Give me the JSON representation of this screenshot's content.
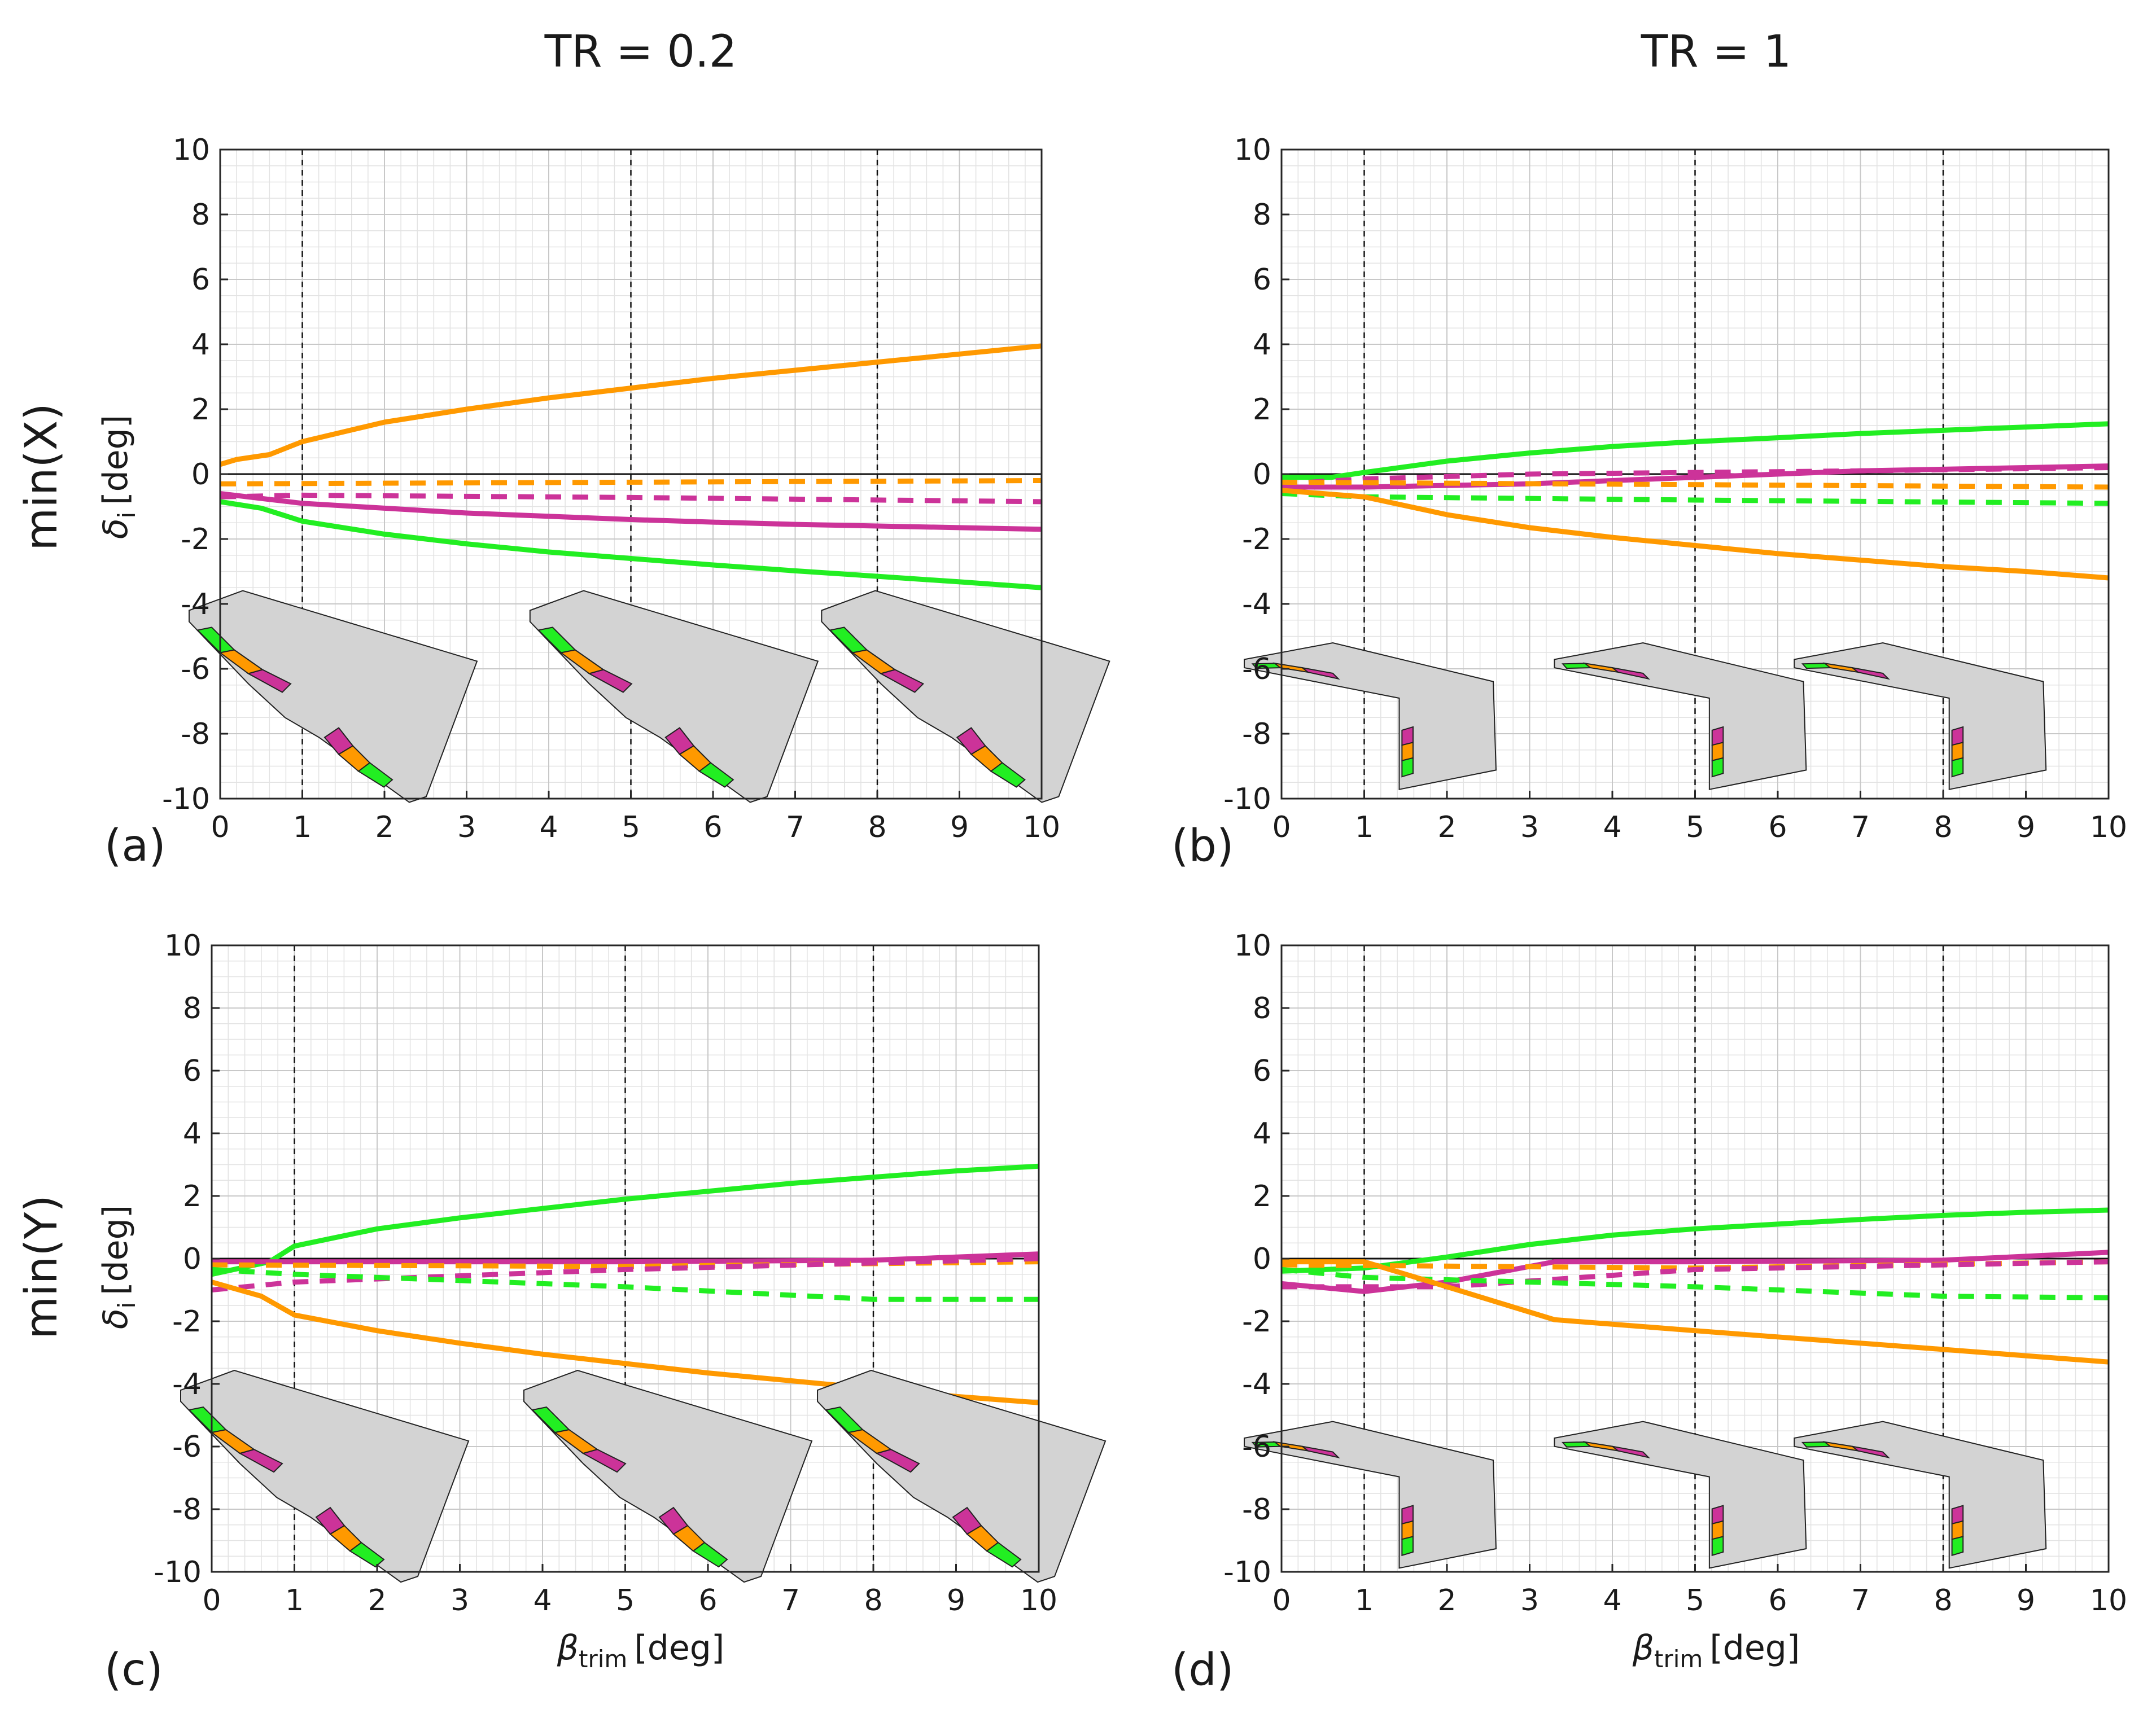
{
  "figure": {
    "column_titles": [
      "TR = 0.2",
      "TR = 1"
    ],
    "row_labels": [
      "min(X)",
      "min(Y)"
    ],
    "ylabel": {
      "symbol": "δ",
      "sub": "i",
      "unit": "[deg]"
    },
    "xlabel": {
      "symbol": "β",
      "sub": "trim",
      "unit": "[deg]"
    },
    "colors": {
      "orange": "#ff9900",
      "magenta": "#cc3399",
      "green": "#22ee22",
      "wing": "#d3d3d3",
      "edge": "#222222"
    }
  },
  "chart_data": [
    {
      "panel": "(a)",
      "type": "line",
      "column": "TR = 0.2",
      "row": "min(X)",
      "xlim": [
        0,
        10
      ],
      "ylim": [
        -10,
        10
      ],
      "xticks": [
        0,
        1,
        2,
        3,
        4,
        5,
        6,
        7,
        8,
        9,
        10
      ],
      "yticks": [
        -10,
        -8,
        -6,
        -4,
        -2,
        0,
        2,
        4,
        6,
        8,
        10
      ],
      "grid": true,
      "vlines": [
        1,
        5,
        8
      ],
      "inset_wing": "swept",
      "series": [
        {
          "name": "orange solid",
          "color": "orange",
          "style": "solid",
          "x": [
            0,
            0.2,
            0.6,
            0.8,
            1,
            2,
            3,
            4,
            5,
            6,
            7,
            8,
            9,
            10
          ],
          "y": [
            0.3,
            0.45,
            0.6,
            0.8,
            1.0,
            1.6,
            2.0,
            2.35,
            2.65,
            2.95,
            3.2,
            3.45,
            3.7,
            3.95
          ]
        },
        {
          "name": "orange dashed",
          "color": "orange",
          "style": "dashed",
          "x": [
            0,
            10
          ],
          "y": [
            -0.3,
            -0.2
          ]
        },
        {
          "name": "magenta dashed",
          "color": "magenta",
          "style": "dashed",
          "x": [
            0,
            1,
            5,
            10
          ],
          "y": [
            -0.7,
            -0.65,
            -0.72,
            -0.85
          ]
        },
        {
          "name": "magenta solid",
          "color": "magenta",
          "style": "solid",
          "x": [
            0,
            1,
            2,
            3,
            4,
            5,
            6,
            7,
            8,
            9,
            10
          ],
          "y": [
            -0.6,
            -0.9,
            -1.05,
            -1.2,
            -1.3,
            -1.4,
            -1.48,
            -1.55,
            -1.6,
            -1.65,
            -1.7
          ]
        },
        {
          "name": "green solid",
          "color": "green",
          "style": "solid",
          "x": [
            0,
            0.5,
            1,
            2,
            3,
            4,
            5,
            6,
            7,
            8,
            9,
            10
          ],
          "y": [
            -0.85,
            -1.05,
            -1.45,
            -1.85,
            -2.15,
            -2.4,
            -2.6,
            -2.8,
            -2.98,
            -3.15,
            -3.32,
            -3.5
          ]
        }
      ]
    },
    {
      "panel": "(b)",
      "type": "line",
      "column": "TR = 1",
      "row": "min(X)",
      "xlim": [
        0,
        10
      ],
      "ylim": [
        -10,
        10
      ],
      "xticks": [
        0,
        1,
        2,
        3,
        4,
        5,
        6,
        7,
        8,
        9,
        10
      ],
      "yticks": [
        -10,
        -8,
        -6,
        -4,
        -2,
        0,
        2,
        4,
        6,
        8,
        10
      ],
      "grid": true,
      "vlines": [
        1,
        5,
        8
      ],
      "inset_wing": "straight",
      "series": [
        {
          "name": "green solid",
          "color": "green",
          "style": "solid",
          "x": [
            0,
            0.6,
            1,
            2,
            3,
            4,
            5,
            6,
            7,
            8,
            9,
            10
          ],
          "y": [
            -0.1,
            -0.1,
            0.05,
            0.4,
            0.65,
            0.85,
            1.0,
            1.12,
            1.25,
            1.35,
            1.45,
            1.55
          ]
        },
        {
          "name": "magenta dashed",
          "color": "magenta",
          "style": "dashed",
          "x": [
            0,
            1,
            3,
            5,
            7,
            10
          ],
          "y": [
            -0.3,
            -0.15,
            0.0,
            0.05,
            0.1,
            0.2
          ]
        },
        {
          "name": "magenta solid",
          "color": "magenta",
          "style": "solid",
          "x": [
            0,
            1,
            2,
            3,
            4,
            5,
            6,
            7,
            8,
            9,
            10
          ],
          "y": [
            -0.4,
            -0.4,
            -0.35,
            -0.3,
            -0.2,
            -0.1,
            0.0,
            0.1,
            0.15,
            0.2,
            0.25
          ]
        },
        {
          "name": "orange dashed",
          "color": "orange",
          "style": "dashed",
          "x": [
            0,
            10
          ],
          "y": [
            -0.25,
            -0.4
          ]
        },
        {
          "name": "green dashed",
          "color": "green",
          "style": "dashed",
          "x": [
            0,
            1,
            5,
            10
          ],
          "y": [
            -0.6,
            -0.7,
            -0.8,
            -0.9
          ]
        },
        {
          "name": "orange solid",
          "color": "orange",
          "style": "solid",
          "x": [
            0,
            1,
            2,
            3,
            4,
            5,
            6,
            7,
            8,
            9,
            10
          ],
          "y": [
            -0.5,
            -0.7,
            -1.25,
            -1.65,
            -1.95,
            -2.2,
            -2.45,
            -2.65,
            -2.85,
            -3.0,
            -3.2
          ]
        }
      ]
    },
    {
      "panel": "(c)",
      "type": "line",
      "column": "TR = 0.2",
      "row": "min(Y)",
      "xlim": [
        0,
        10
      ],
      "ylim": [
        -10,
        10
      ],
      "xticks": [
        0,
        1,
        2,
        3,
        4,
        5,
        6,
        7,
        8,
        9,
        10
      ],
      "yticks": [
        -10,
        -8,
        -6,
        -4,
        -2,
        0,
        2,
        4,
        6,
        8,
        10
      ],
      "grid": true,
      "vlines": [
        1,
        5,
        8
      ],
      "inset_wing": "swept",
      "series": [
        {
          "name": "green solid",
          "color": "green",
          "style": "solid",
          "x": [
            0,
            0.7,
            1,
            2,
            3,
            4,
            5,
            6,
            7,
            8,
            9,
            10
          ],
          "y": [
            -0.5,
            -0.1,
            0.4,
            0.95,
            1.3,
            1.6,
            1.9,
            2.15,
            2.4,
            2.6,
            2.8,
            2.95
          ]
        },
        {
          "name": "magenta solid",
          "color": "magenta",
          "style": "solid",
          "x": [
            0,
            1,
            5,
            8,
            10
          ],
          "y": [
            -0.1,
            -0.1,
            -0.1,
            -0.05,
            0.15
          ]
        },
        {
          "name": "orange dashed",
          "color": "orange",
          "style": "dashed",
          "x": [
            0,
            5,
            10
          ],
          "y": [
            -0.2,
            -0.25,
            -0.1
          ]
        },
        {
          "name": "magenta dashed",
          "color": "magenta",
          "style": "dashed",
          "x": [
            0,
            1,
            5,
            10
          ],
          "y": [
            -1.0,
            -0.75,
            -0.35,
            0.0
          ]
        },
        {
          "name": "green dashed",
          "color": "green",
          "style": "dashed",
          "x": [
            0,
            1,
            5,
            8,
            10
          ],
          "y": [
            -0.35,
            -0.5,
            -0.9,
            -1.3,
            -1.3
          ]
        },
        {
          "name": "orange solid",
          "color": "orange",
          "style": "solid",
          "x": [
            0,
            0.6,
            1,
            2,
            3,
            4,
            5,
            6,
            7,
            8,
            9,
            10
          ],
          "y": [
            -0.75,
            -1.2,
            -1.8,
            -2.3,
            -2.7,
            -3.05,
            -3.35,
            -3.65,
            -3.9,
            -4.15,
            -4.4,
            -4.6
          ]
        }
      ]
    },
    {
      "panel": "(d)",
      "type": "line",
      "column": "TR = 1",
      "row": "min(Y)",
      "xlim": [
        0,
        10
      ],
      "ylim": [
        -10,
        10
      ],
      "xticks": [
        0,
        1,
        2,
        3,
        4,
        5,
        6,
        7,
        8,
        9,
        10
      ],
      "yticks": [
        -10,
        -8,
        -6,
        -4,
        -2,
        0,
        2,
        4,
        6,
        8,
        10
      ],
      "grid": true,
      "vlines": [
        1,
        5,
        8
      ],
      "inset_wing": "straight",
      "series": [
        {
          "name": "green solid",
          "color": "green",
          "style": "solid",
          "x": [
            0,
            1,
            2,
            3,
            4,
            5,
            6,
            7,
            8,
            9,
            10
          ],
          "y": [
            -0.4,
            -0.3,
            0.05,
            0.45,
            0.75,
            0.95,
            1.1,
            1.25,
            1.38,
            1.48,
            1.55
          ]
        },
        {
          "name": "magenta solid",
          "color": "magenta",
          "style": "solid",
          "x": [
            0,
            1,
            2,
            3.3,
            5,
            8,
            10
          ],
          "y": [
            -0.8,
            -1.05,
            -0.75,
            -0.1,
            -0.1,
            -0.05,
            0.2
          ]
        },
        {
          "name": "orange dashed",
          "color": "orange",
          "style": "dashed",
          "x": [
            0,
            5,
            10
          ],
          "y": [
            -0.2,
            -0.3,
            -0.1
          ]
        },
        {
          "name": "magenta dashed",
          "color": "magenta",
          "style": "dashed",
          "x": [
            0,
            2,
            5,
            10
          ],
          "y": [
            -0.9,
            -0.9,
            -0.35,
            -0.1
          ]
        },
        {
          "name": "green dashed",
          "color": "green",
          "style": "dashed",
          "x": [
            0,
            1,
            5,
            8,
            10
          ],
          "y": [
            -0.35,
            -0.6,
            -0.9,
            -1.2,
            -1.25
          ]
        },
        {
          "name": "orange solid",
          "color": "orange",
          "style": "solid",
          "x": [
            0,
            1,
            2,
            3.3,
            5,
            6,
            7,
            8,
            9,
            10
          ],
          "y": [
            -0.1,
            -0.1,
            -0.9,
            -1.95,
            -2.3,
            -2.5,
            -2.7,
            -2.9,
            -3.1,
            -3.3
          ]
        }
      ]
    }
  ]
}
